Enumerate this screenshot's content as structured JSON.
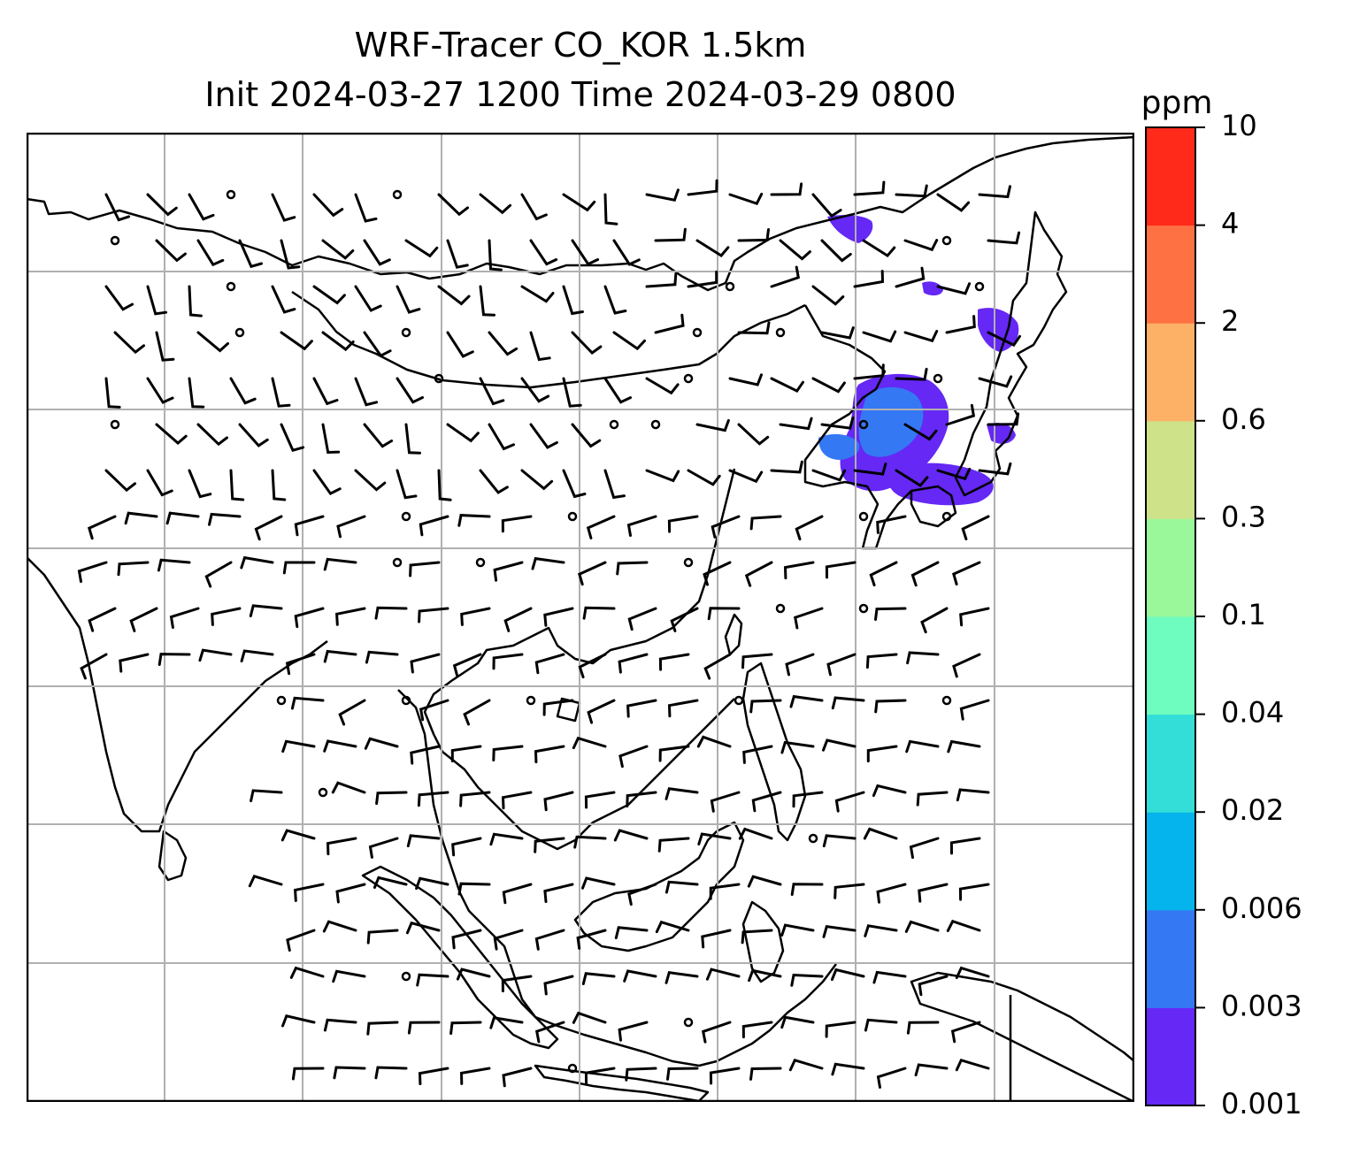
{
  "title": {
    "line1": "WRF-Tracer CO_KOR 1.5km",
    "line2": "Init 2024-03-27 1200 Time 2024-03-29 0800"
  },
  "colorbar": {
    "unit": "ppm",
    "levels": [
      "0.001",
      "0.003",
      "0.006",
      "0.02",
      "0.04",
      "0.1",
      "0.3",
      "0.6",
      "2",
      "4",
      "10"
    ],
    "colors": [
      "#6528f5",
      "#3478f4",
      "#05b4ec",
      "#32ded7",
      "#6efdbf",
      "#9bf89a",
      "#cde289",
      "#fdb167",
      "#fe7143",
      "#ff2a1a"
    ]
  },
  "map": {
    "gridline_color": "#b0b0b0",
    "coastline_color": "#000000",
    "wind_barb_color": "#000000"
  }
}
